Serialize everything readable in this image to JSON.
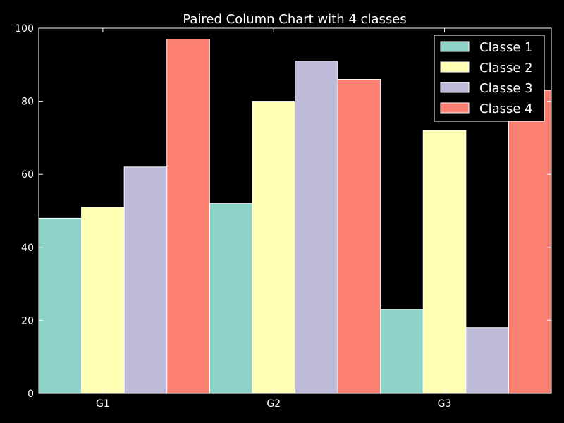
{
  "chart_data": {
    "type": "bar",
    "title": "Paired Column Chart with 4 classes",
    "xlabel": "",
    "ylabel": "",
    "categories": [
      "G1",
      "G2",
      "G3"
    ],
    "ylim": [
      0,
      100
    ],
    "yticks": [
      0,
      20,
      40,
      60,
      80,
      100
    ],
    "grid": false,
    "legend_position": "top-right",
    "series": [
      {
        "name": "Classe 1",
        "color": "#8dd3c7",
        "values": [
          48,
          52,
          23
        ]
      },
      {
        "name": "Classe 2",
        "color": "#ffffb3",
        "values": [
          51,
          80,
          72
        ]
      },
      {
        "name": "Classe 3",
        "color": "#bebada",
        "values": [
          62,
          91,
          18
        ]
      },
      {
        "name": "Classe 4",
        "color": "#fb8072",
        "values": [
          97,
          86,
          83
        ]
      }
    ]
  }
}
